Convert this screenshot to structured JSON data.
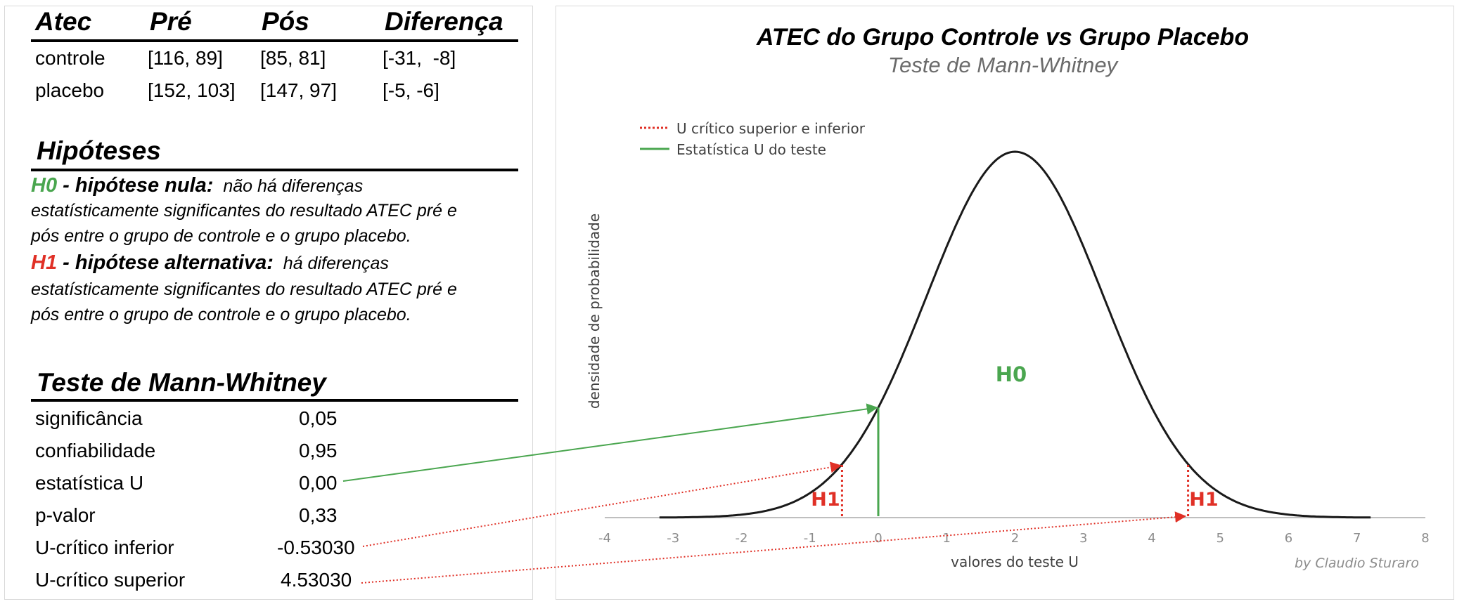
{
  "atec_table": {
    "headers": [
      "Atec",
      "Pré",
      "Pós",
      "Diferença"
    ],
    "rows": [
      {
        "label": "controle",
        "pre": "[116, 89]",
        "pos": "[85, 81]",
        "diff": "[-31,  -8]"
      },
      {
        "label": "placebo",
        "pre": "[152, 103]",
        "pos": "[147, 97]",
        "diff": "[-5, -6]"
      }
    ]
  },
  "hypotheses": {
    "title": "Hipóteses",
    "h0": {
      "tag": "H0",
      "label": " - hipótese nula:",
      "lines": [
        "não há diferenças",
        "estatísticamente significantes do resultado ATEC pré e",
        "pós entre o grupo de controle e o grupo placebo."
      ]
    },
    "h1": {
      "tag": "H1",
      "label": " - hipótese alternativa:",
      "lines": [
        "há diferenças",
        "estatísticamente significantes do resultado ATEC pré e",
        "pós entre o grupo de controle e o grupo placebo."
      ]
    }
  },
  "test": {
    "title": "Teste de Mann-Whitney",
    "rows": [
      {
        "label": "significância",
        "value": "0,05"
      },
      {
        "label": "confiabilidade",
        "value": "0,95"
      },
      {
        "label": "estatística U",
        "value": "0,00"
      },
      {
        "label": "p-valor",
        "value": "0,33"
      },
      {
        "label": "U-crítico inferior",
        "value": "-0.53030"
      },
      {
        "label": "U-crítico superior",
        "value": "4.53030"
      }
    ]
  },
  "chart_data": {
    "type": "line",
    "title": "ATEC do Grupo Controle vs Grupo Placebo",
    "subtitle": "Teste de Mann-Whitney",
    "xlabel": "valores do teste U",
    "ylabel": "densidade de probabilidade",
    "xlim": [
      -4,
      8
    ],
    "x_ticks": [
      -4,
      -3,
      -2,
      -1,
      0,
      1,
      2,
      3,
      4,
      5,
      6,
      7,
      8
    ],
    "distribution": {
      "mean": 2,
      "sd": 1.29,
      "x_start": -3.2,
      "x_end": 7.2
    },
    "legend": {
      "position": "top-left",
      "entries": [
        {
          "label": "U crítico superior e inferior",
          "style": "dotted",
          "color": "#e03026"
        },
        {
          "label": "Estatística U do teste",
          "style": "solid",
          "color": "#4aa64f"
        }
      ]
    },
    "u_statistic": 0.0,
    "u_critical_lower": -0.5303,
    "u_critical_upper": 4.5303,
    "region_labels": {
      "center": "H0",
      "left": "H1",
      "right": "H1"
    },
    "annotation": "by Claudio Sturaro"
  },
  "colors": {
    "green": "#4aa64f",
    "red": "#e03026",
    "curve": "#1a1a1a",
    "axis": "#bfbfbf"
  }
}
